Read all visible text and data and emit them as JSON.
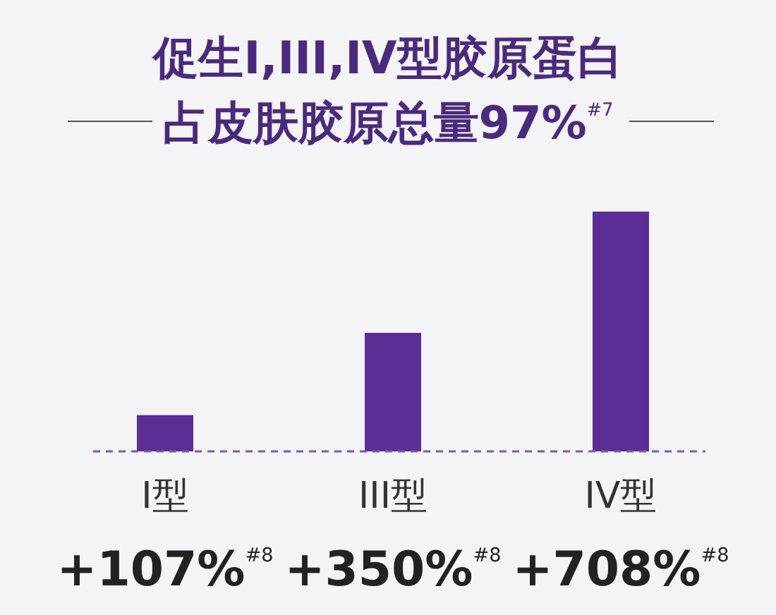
{
  "chart_data": {
    "type": "bar",
    "title": "促生I,III,IV型胶原蛋白",
    "subtitle": "占皮肤胶原总量97%$^{#7}$",
    "categories": [
      "I型",
      "III型",
      "IV型"
    ],
    "values": [
      107,
      350,
      708
    ],
    "color": "#5b2e95",
    "value_labels": [
      "+107%$^{#8}$",
      "+350%$^{#8}$",
      "+708%$^{#8}$"
    ]
  }
}
